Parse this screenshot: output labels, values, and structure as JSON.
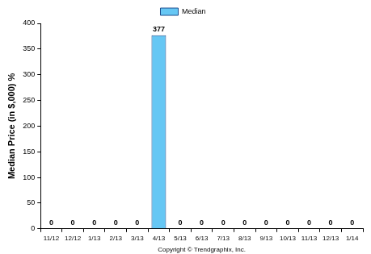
{
  "chart_data": {
    "type": "bar",
    "ylabel": "Median Price (in $,000) %",
    "xlabel": "Copyright © Trendgraphix, Inc.",
    "categories": [
      "11/12",
      "12/12",
      "1/13",
      "2/13",
      "3/13",
      "4/13",
      "5/13",
      "6/13",
      "7/13",
      "8/13",
      "9/13",
      "10/13",
      "11/13",
      "12/13",
      "1/14"
    ],
    "series": [
      {
        "name": "Median",
        "color": "#66c7f4",
        "values": [
          0,
          0,
          0,
          0,
          0,
          377,
          0,
          0,
          0,
          0,
          0,
          0,
          0,
          0,
          0
        ]
      }
    ],
    "ylim": [
      0,
      400
    ],
    "yticks": [
      0,
      50,
      100,
      150,
      200,
      250,
      300,
      350,
      400
    ],
    "grid": false,
    "legend": "top",
    "data_labels": true
  }
}
